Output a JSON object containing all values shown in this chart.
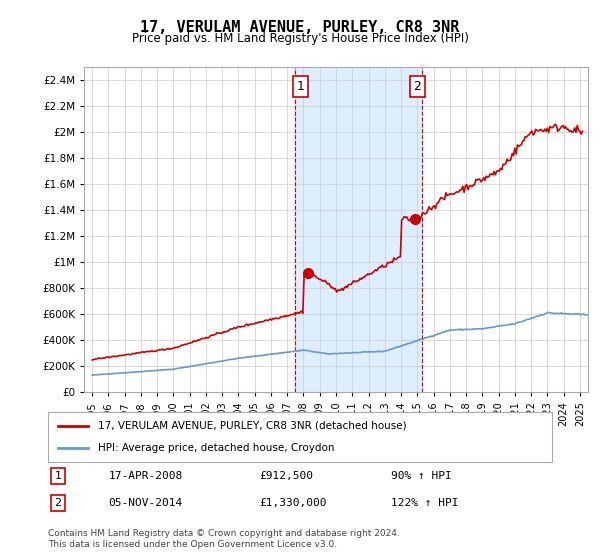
{
  "title": "17, VERULAM AVENUE, PURLEY, CR8 3NR",
  "subtitle": "Price paid vs. HM Land Registry's House Price Index (HPI)",
  "hpi_label": "HPI: Average price, detached house, Croydon",
  "property_label": "17, VERULAM AVENUE, PURLEY, CR8 3NR (detached house)",
  "footnote": "Contains HM Land Registry data © Crown copyright and database right 2024.\nThis data is licensed under the Open Government Licence v3.0.",
  "sales": [
    {
      "num": 1,
      "date": "17-APR-2008",
      "price": 912500,
      "pct": "90%",
      "dir": "↑"
    },
    {
      "num": 2,
      "date": "05-NOV-2014",
      "price": 1330000,
      "pct": "122%",
      "dir": "↑"
    }
  ],
  "sale_years": [
    2008.3,
    2014.85
  ],
  "sale_prices": [
    912500,
    1330000
  ],
  "ylim": [
    0,
    2500000
  ],
  "yticks": [
    0,
    200000,
    400000,
    600000,
    800000,
    1000000,
    1200000,
    1400000,
    1600000,
    1800000,
    2000000,
    2200000,
    2400000
  ],
  "ytick_labels": [
    "£0",
    "£200K",
    "£400K",
    "£600K",
    "£800K",
    "£1M",
    "£1.2M",
    "£1.4M",
    "£1.6M",
    "£1.8M",
    "£2M",
    "£2.2M",
    "£2.4M"
  ],
  "xlim_start": 1994.5,
  "xlim_end": 2025.5,
  "xticks": [
    1995,
    1996,
    1997,
    1998,
    1999,
    2000,
    2001,
    2002,
    2003,
    2004,
    2005,
    2006,
    2007,
    2008,
    2009,
    2010,
    2011,
    2012,
    2013,
    2014,
    2015,
    2016,
    2017,
    2018,
    2019,
    2020,
    2021,
    2022,
    2023,
    2024,
    2025
  ],
  "highlight_x1": 2007.5,
  "highlight_x2": 2015.3,
  "property_color": "#cc0000",
  "hpi_color": "#6699cc",
  "highlight_color": "#ddeeff",
  "highlight_border": "#cc0000",
  "background_color": "#ffffff"
}
